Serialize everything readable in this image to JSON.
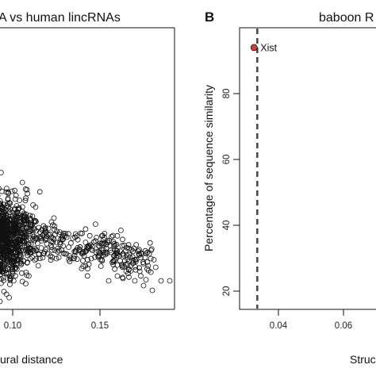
{
  "chart_data": [
    {
      "panel": "",
      "type": "scatter",
      "title": "A vs human lincRNAs",
      "xlabel": "ural distance",
      "ylabel": "",
      "x_ticks": [
        "0.10",
        "0.15"
      ],
      "x_tick_values": [
        0.1,
        0.15
      ],
      "xlim": [
        0.04,
        0.2
      ],
      "series": [
        {
          "marker": "open-circle",
          "color": "#111111",
          "dense_region_center_x": 0.065,
          "sparse_points": [
            {
              "x": 0.035,
              "y": 33
            },
            {
              "x": 0.04,
              "y": 32
            },
            {
              "x": 0.045,
              "y": 34
            },
            {
              "x": 0.05,
              "y": 33
            },
            {
              "x": 0.055,
              "y": 32
            },
            {
              "x": 0.06,
              "y": 34
            },
            {
              "x": 0.065,
              "y": 33
            },
            {
              "x": 0.07,
              "y": 32
            },
            {
              "x": 0.075,
              "y": 33
            },
            {
              "x": 0.08,
              "y": 34
            },
            {
              "x": 0.085,
              "y": 33
            },
            {
              "x": 0.09,
              "y": 34
            },
            {
              "x": 0.095,
              "y": 33
            },
            {
              "x": 0.1,
              "y": 34
            },
            {
              "x": 0.105,
              "y": 33
            },
            {
              "x": 0.11,
              "y": 34
            },
            {
              "x": 0.115,
              "y": 35
            },
            {
              "x": 0.12,
              "y": 35
            },
            {
              "x": 0.125,
              "y": 34
            },
            {
              "x": 0.13,
              "y": 35
            },
            {
              "x": 0.135,
              "y": 34
            },
            {
              "x": 0.14,
              "y": 35
            },
            {
              "x": 0.145,
              "y": 34
            },
            {
              "x": 0.15,
              "y": 35
            },
            {
              "x": 0.155,
              "y": 33
            },
            {
              "x": 0.16,
              "y": 34
            },
            {
              "x": 0.165,
              "y": 35
            },
            {
              "x": 0.17,
              "y": 33
            },
            {
              "x": 0.175,
              "y": 32
            },
            {
              "x": 0.18,
              "y": 31
            },
            {
              "x": 0.185,
              "y": 33
            },
            {
              "x": 0.19,
              "y": 33
            },
            {
              "x": 0.195,
              "y": 32
            }
          ]
        }
      ]
    },
    {
      "panel": "B",
      "type": "scatter",
      "title": "baboon R",
      "xlabel": "Struc",
      "ylabel": "Percentage of sequence similarity",
      "x_ticks": [
        "0.04",
        "0.06"
      ],
      "x_tick_values": [
        0.04,
        0.06
      ],
      "y_ticks": [
        "20",
        "40",
        "60",
        "80"
      ],
      "y_tick_values": [
        20,
        40,
        60,
        80
      ],
      "xlim": [
        0.029,
        0.075
      ],
      "ylim": [
        13,
        98
      ],
      "reference_line": {
        "x": 0.0335,
        "style": "dashed",
        "color": "#444444"
      },
      "series": [
        {
          "marker": "filled-circle",
          "color": "#d43c3c",
          "points": [
            {
              "x": 0.0325,
              "y": 94,
              "label": "Xist"
            }
          ]
        }
      ]
    }
  ]
}
